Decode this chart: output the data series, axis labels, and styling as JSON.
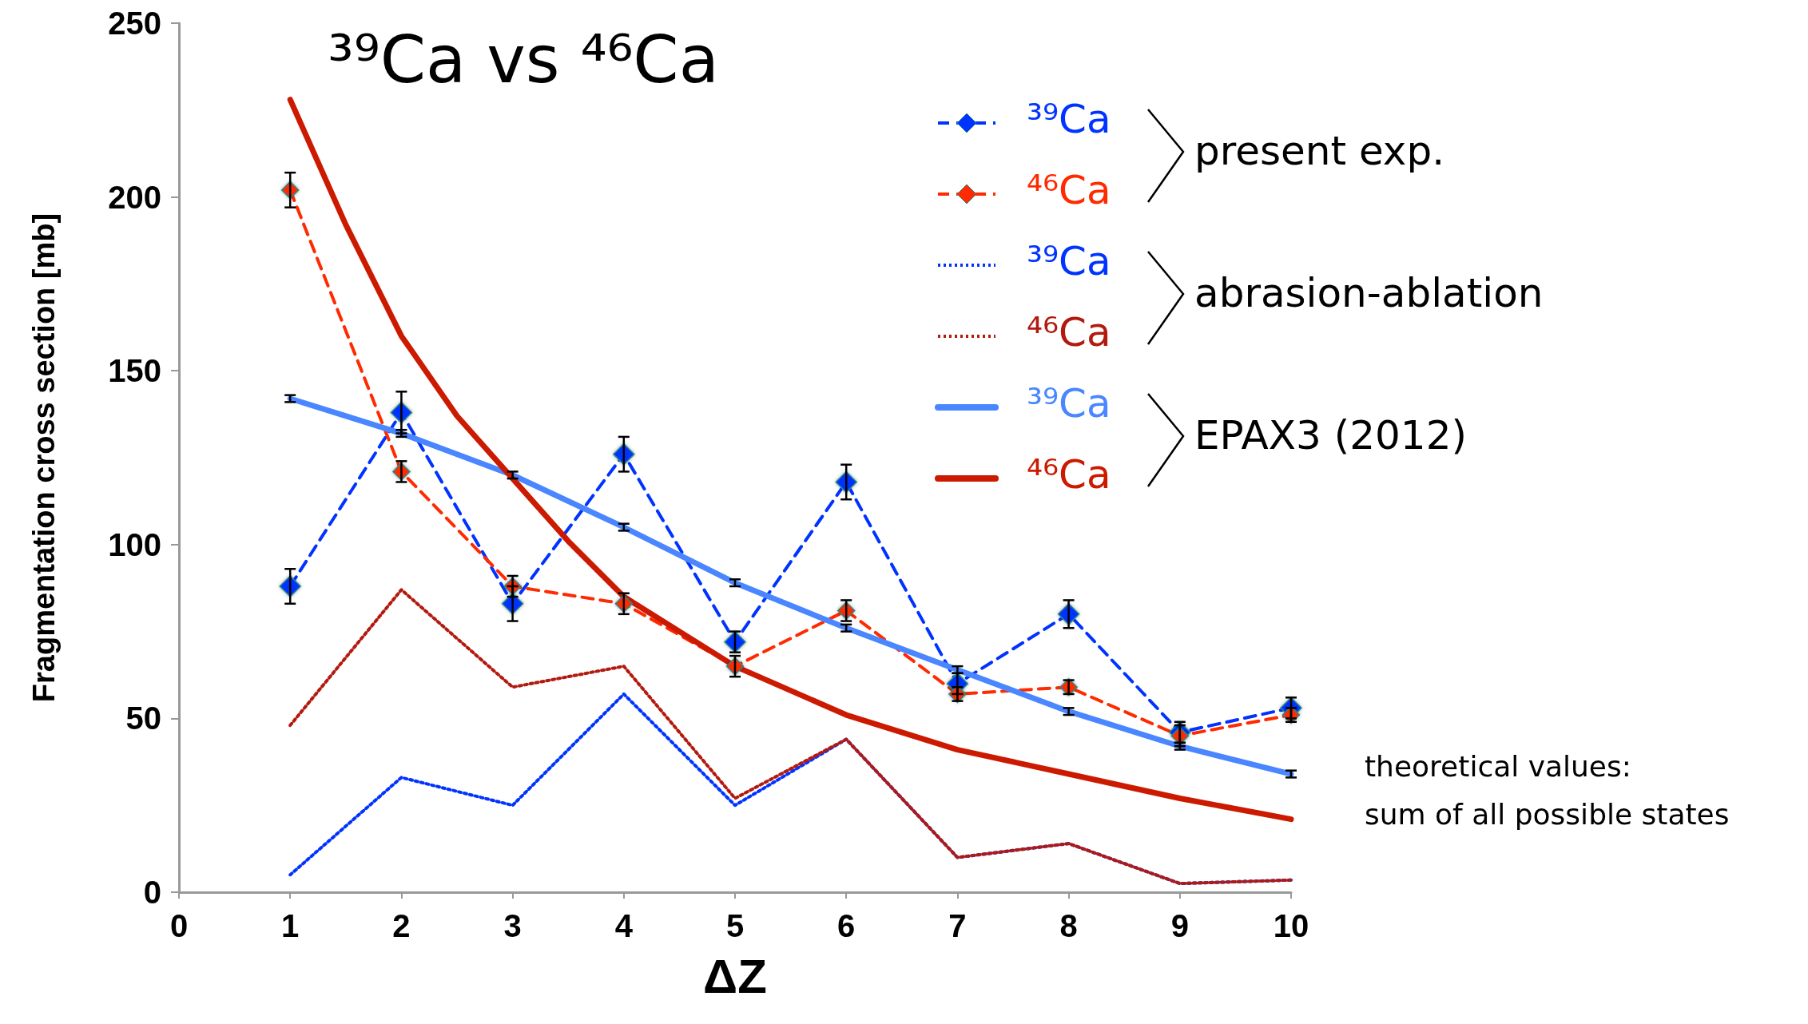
{
  "chart_data": {
    "type": "line",
    "title": "³⁹Ca vs ⁴⁶Ca",
    "xlabel": "ΔZ",
    "ylabel": "Fragmentation cross section [mb]",
    "xlim": [
      0,
      10
    ],
    "xticks": [
      0,
      1,
      2,
      3,
      4,
      5,
      6,
      7,
      8,
      9,
      10
    ],
    "ylim": [
      0,
      250
    ],
    "yticks": [
      0,
      50,
      100,
      150,
      200,
      250
    ],
    "grid": false,
    "legend": "right",
    "annotations": [
      "present exp.",
      "abrasion-ablation",
      "EPAX3 (2012)",
      "theoretical values:\nsum of all possible states"
    ],
    "series": [
      {
        "name": "³⁹Ca",
        "color": "#0033ff",
        "marker": "diamond",
        "line_style": "dashed",
        "x": [
          1,
          2,
          3,
          4,
          5,
          6,
          7,
          8,
          9,
          10
        ],
        "values": [
          88,
          138,
          83,
          126,
          72,
          118,
          60,
          80,
          46,
          53
        ],
        "errors": [
          5,
          6,
          5,
          5,
          3,
          5,
          3,
          4,
          3,
          3
        ]
      },
      {
        "name": "⁴⁶Ca",
        "color": "#ff2a00",
        "marker": "diamond",
        "line_style": "dashed",
        "x": [
          1,
          2,
          3,
          4,
          5,
          6,
          7,
          8,
          9,
          10
        ],
        "values": [
          202,
          121,
          88,
          83,
          65,
          81,
          57,
          59,
          45,
          51
        ],
        "errors": [
          5,
          3,
          3,
          3,
          3,
          3,
          2,
          2,
          3,
          2
        ]
      },
      {
        "name": "³⁹Ca",
        "color": "#0033ff",
        "marker": "none",
        "line_style": "dotted",
        "x": [
          1,
          2,
          3,
          4,
          5,
          6,
          7,
          8,
          9,
          10
        ],
        "values": [
          5,
          33,
          25,
          57,
          25,
          44,
          10,
          14,
          2.5,
          3.5
        ]
      },
      {
        "name": "⁴⁶Ca",
        "color": "#b31a0f",
        "marker": "none",
        "line_style": "dotted",
        "x": [
          1,
          2,
          3,
          4,
          5,
          6,
          7,
          8,
          9,
          10
        ],
        "values": [
          48,
          87,
          59,
          65,
          27,
          44,
          10,
          14,
          2.5,
          3.5
        ]
      },
      {
        "name": "³⁹Ca",
        "color": "#4a86ff",
        "marker": "none",
        "line_style": "solid",
        "x": [
          1,
          2,
          3,
          4,
          5,
          6,
          7,
          8,
          9,
          10
        ],
        "values": [
          142,
          132,
          120,
          105,
          89,
          76,
          64,
          52,
          42,
          34
        ],
        "errors": [
          1,
          1,
          1,
          1,
          1,
          1,
          1,
          1,
          1,
          1
        ]
      },
      {
        "name": "⁴⁶Ca",
        "color": "#cc1a00",
        "marker": "none",
        "line_style": "solid",
        "x": [
          1,
          1.5,
          2,
          2.5,
          3,
          3.5,
          4,
          5,
          6,
          7,
          8,
          9,
          10
        ],
        "values": [
          228,
          192,
          160,
          137,
          119,
          101,
          85,
          65,
          51,
          41,
          34,
          27,
          21
        ]
      }
    ]
  }
}
